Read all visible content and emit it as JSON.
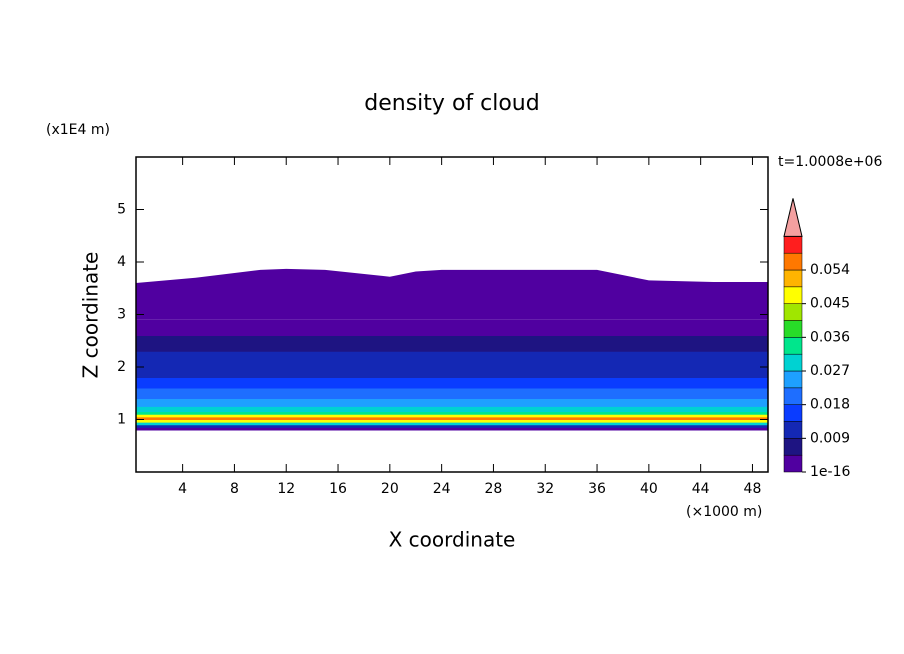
{
  "chart_data": {
    "type": "contour",
    "title": "density of cloud",
    "y_unit": "(x1E4 m)",
    "x_unit": "(×1000 m)",
    "time_label": "t=1.0008e+06",
    "xlabel": "X coordinate",
    "ylabel": "Z coordinate",
    "xlim": [
      0.4,
      49.2
    ],
    "ylim": [
      0,
      6
    ],
    "xticks": [
      4,
      8,
      12,
      16,
      20,
      24,
      28,
      32,
      36,
      40,
      44,
      48
    ],
    "yticks": [
      1,
      2,
      3,
      4,
      5
    ],
    "levels": [
      1e-16,
      0.0045,
      0.009,
      0.0135,
      0.018,
      0.0225,
      0.027,
      0.0315,
      0.036,
      0.0405,
      0.045,
      0.0495,
      0.054,
      0.0585
    ],
    "colors": [
      "#5000a0",
      "#1e1482",
      "#1428b4",
      "#0a3cff",
      "#1e6eff",
      "#1ea0ff",
      "#00d2d2",
      "#00e68c",
      "#28dc28",
      "#a0e600",
      "#ffff00",
      "#ffb400",
      "#ff7800",
      "#ff1e1e"
    ],
    "extend_color": "#f4a0a0",
    "colorbar_ticks": [
      {
        "value": 1e-16,
        "label": "1e-16"
      },
      0.009,
      0.018,
      0.027,
      0.036,
      0.045,
      0.054
    ],
    "field": {
      "z": [
        0.8,
        0.85,
        0.9,
        0.95,
        1.0,
        1.05,
        1.1,
        1.15,
        1.25,
        1.4,
        1.6,
        1.8,
        2.05,
        2.3,
        2.6,
        2.9
      ],
      "values": [
        0.004,
        0.012,
        0.03,
        0.045,
        0.055,
        0.045,
        0.033,
        0.028,
        0.024,
        0.02,
        0.016,
        0.013,
        0.009,
        0.006,
        0.003
      ]
    },
    "cloud_top": {
      "value": 0.001,
      "x": [
        0.4,
        5,
        10,
        12,
        15,
        20,
        22,
        24,
        30,
        36,
        40,
        45,
        49.2
      ],
      "z": [
        3.6,
        3.7,
        3.85,
        3.87,
        3.85,
        3.72,
        3.82,
        3.85,
        3.85,
        3.85,
        3.65,
        3.62,
        3.62
      ]
    }
  }
}
